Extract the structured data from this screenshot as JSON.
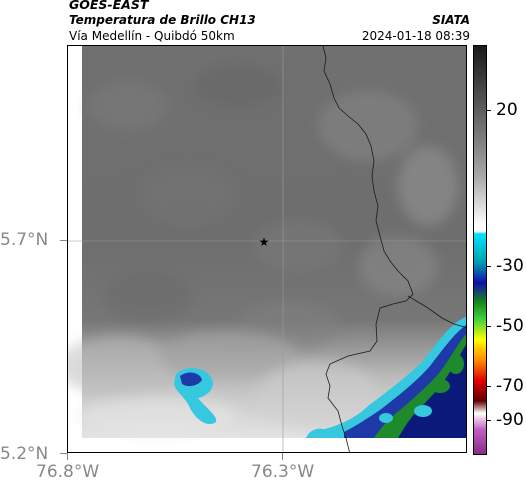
{
  "header": {
    "satellite": "GOES-EAST",
    "product": "Temperatura de Brillo CH13",
    "route": "Vía Medellín - Quibdó 50km",
    "agency": "SIATA",
    "timestamp": "2024-01-18 08:39"
  },
  "axes": {
    "x_ticks": [
      "76.8°W",
      "76.3°W"
    ],
    "y_ticks": [
      "5.7°N",
      "5.2°N"
    ]
  },
  "colorbar": {
    "labels": [
      "20",
      "-30",
      "-50",
      "-70",
      "-90"
    ],
    "stops": [
      "#1a1a1a",
      "#5a5a5a",
      "#a8a8a8",
      "#ffffff",
      "#00e5ff",
      "#00a0b0",
      "#1010aa",
      "#1a8a1a",
      "#40d040",
      "#ffff00",
      "#ff8c00",
      "#e00000",
      "#600000",
      "#ffffff",
      "#c060c0",
      "#8a2a8a"
    ]
  },
  "map": {
    "marker_icon": "star-icon",
    "palette": {
      "cloud_gray": "#6e6e6e",
      "warm_light": "#dedede",
      "cyan": "#35c8df",
      "blue": "#1f3aa8",
      "navy": "#0b1a7a",
      "green": "#1e8a2c",
      "border": "#222222"
    }
  }
}
